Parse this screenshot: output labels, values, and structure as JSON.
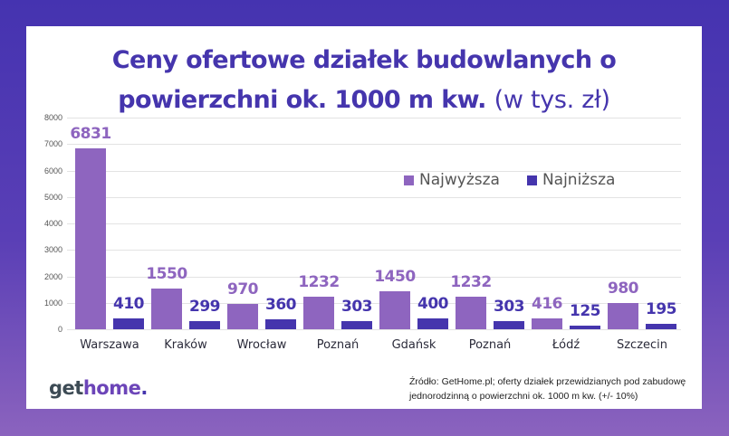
{
  "title": {
    "bold": "Ceny ofertowe działek budowlanych o powierzchni ok. 1000 m kw.",
    "line1": "Ceny ofertowe działek budowlanych o",
    "line2_bold": "powierzchni ok. 1000 m kw.",
    "line2_light": "(w tys. zł)"
  },
  "legend": {
    "high": "Najwyższa",
    "low": "Najniższa"
  },
  "colors": {
    "high": "#8e65bf",
    "low": "#4535ad",
    "title": "#4535ad",
    "background_top": "#4533b0",
    "background_bottom": "#8b63be"
  },
  "logo": {
    "get": "get",
    "home": "home",
    "dot": "."
  },
  "source": {
    "line1": "Źródło: GetHome.pl; oferty działek przewidzianych pod zabudowę",
    "line2": "jednorodzinną o powierzchni ok. 1000 m kw. (+/- 10%)"
  },
  "chart_data": {
    "type": "bar",
    "title": "Ceny ofertowe działek budowlanych o powierzchni ok. 1000 m kw. (w tys. zł)",
    "xlabel": "",
    "ylabel": "",
    "ylim": [
      0,
      8000
    ],
    "yticks": [
      0,
      1000,
      2000,
      3000,
      4000,
      5000,
      6000,
      7000,
      8000
    ],
    "grid": true,
    "legend_position": "upper right",
    "categories": [
      "Warszawa",
      "Kraków",
      "Wrocław",
      "Poznań",
      "Gdańsk",
      "Poznań",
      "Łódź",
      "Szczecin"
    ],
    "series": [
      {
        "name": "Najwyższa",
        "values": [
          6831,
          1550,
          970,
          1232,
          1450,
          1232,
          416,
          980
        ]
      },
      {
        "name": "Najniższa",
        "values": [
          410,
          299,
          360,
          303,
          400,
          303,
          125,
          195
        ]
      }
    ]
  }
}
